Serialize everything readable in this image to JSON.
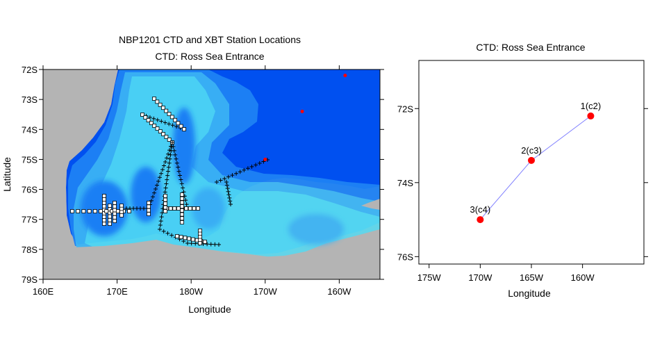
{
  "left_panel": {
    "title_line1": "NBP1201 CTD and XBT Station Locations",
    "title_line2": "CTD: Ross Sea Entrance",
    "xlabel": "Longitude",
    "ylabel": "Latitude",
    "x_ticks": [
      "160E",
      "170E",
      "180W",
      "170W",
      "160W"
    ],
    "y_ticks": [
      "72S",
      "73S",
      "74S",
      "75S",
      "76S",
      "77S",
      "78S",
      "79S"
    ],
    "colors": {
      "land": "#b4b4b4",
      "deep_ocean": "#0050f0",
      "ocean_mid": "#1e82f5",
      "ocean_light": "#3cb4f5",
      "shelf": "#50dcf5",
      "ctd_marker": "#ff0000",
      "xbt_marker": "#000000"
    },
    "ctd_stations": [
      {
        "lon": -159.2,
        "lat": -72.2
      },
      {
        "lon": -165,
        "lat": -73.4
      },
      {
        "lon": -170,
        "lat": -75
      }
    ]
  },
  "right_panel": {
    "title": "CTD: Ross Sea Entrance",
    "xlabel": "Longitude",
    "x_ticks": [
      "175W",
      "170W",
      "165W",
      "160W"
    ],
    "y_ticks": [
      "72S",
      "74S",
      "76S"
    ],
    "line_color": "#7f7fff",
    "marker_color": "#ff0000"
  },
  "chart_data": {
    "type": "scatter",
    "title": "CTD: Ross Sea Entrance",
    "xlabel": "Longitude",
    "ylabel": "",
    "xlim": [
      -176,
      -154
    ],
    "ylim": [
      -76.2,
      -70.7
    ],
    "points": [
      {
        "label": "1(c2)",
        "lon": -159.2,
        "lat": -72.2
      },
      {
        "label": "2(c3)",
        "lon": -165,
        "lat": -73.4
      },
      {
        "label": "3(c4)",
        "lon": -170,
        "lat": -75
      }
    ]
  }
}
